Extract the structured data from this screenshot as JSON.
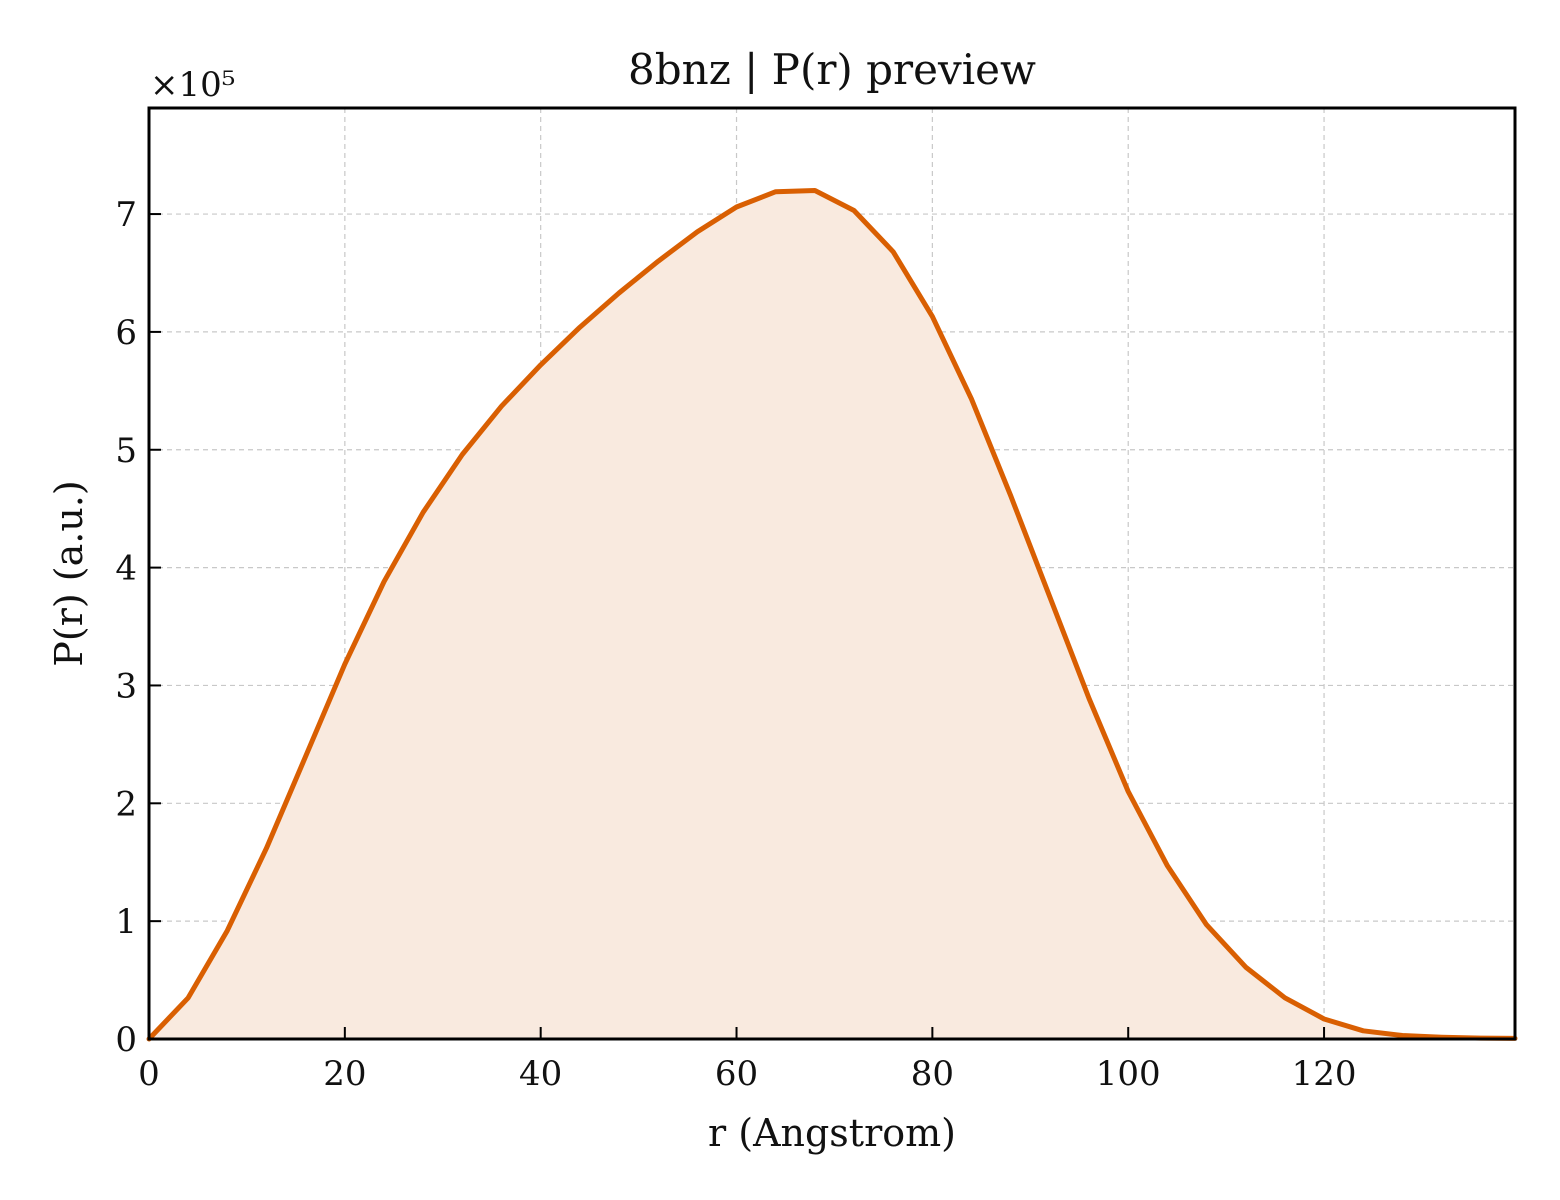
{
  "chart_data": {
    "type": "area",
    "title": "8bnz | P(r) preview",
    "xlabel": "r (Angstrom)",
    "ylabel": "P(r) (a.u.)",
    "y_offset_label": "×10⁵",
    "y_scale": 100000,
    "xlim": [
      0,
      139.5
    ],
    "ylim": [
      0,
      790000
    ],
    "x_ticks": [
      0,
      20,
      40,
      60,
      80,
      100,
      120
    ],
    "y_ticks": [
      0,
      1,
      2,
      3,
      4,
      5,
      6,
      7
    ],
    "grid": true,
    "colors": {
      "line": "#d95f02",
      "fill": "#f9eadf",
      "frame": "#000000",
      "grid": "#c8c8c8"
    },
    "series": [
      {
        "x": [
          0,
          4,
          8,
          12,
          16,
          20,
          24,
          28,
          32,
          36,
          40,
          44,
          48,
          52,
          56,
          60,
          64,
          68,
          72,
          76,
          80,
          84,
          88,
          92,
          96,
          100,
          104,
          108,
          112,
          116,
          120,
          124,
          128,
          132,
          136,
          139.5
        ],
        "y": [
          0,
          35000,
          92000,
          162000,
          240000,
          318000,
          388000,
          447000,
          496000,
          537000,
          572000,
          604000,
          633000,
          660000,
          685000,
          706000,
          719000,
          720000,
          703000,
          668000,
          613000,
          543000,
          461000,
          375000,
          289000,
          210000,
          147000,
          97000,
          61000,
          35000,
          17000,
          7000,
          3000,
          1500,
          800,
          500
        ]
      }
    ]
  }
}
